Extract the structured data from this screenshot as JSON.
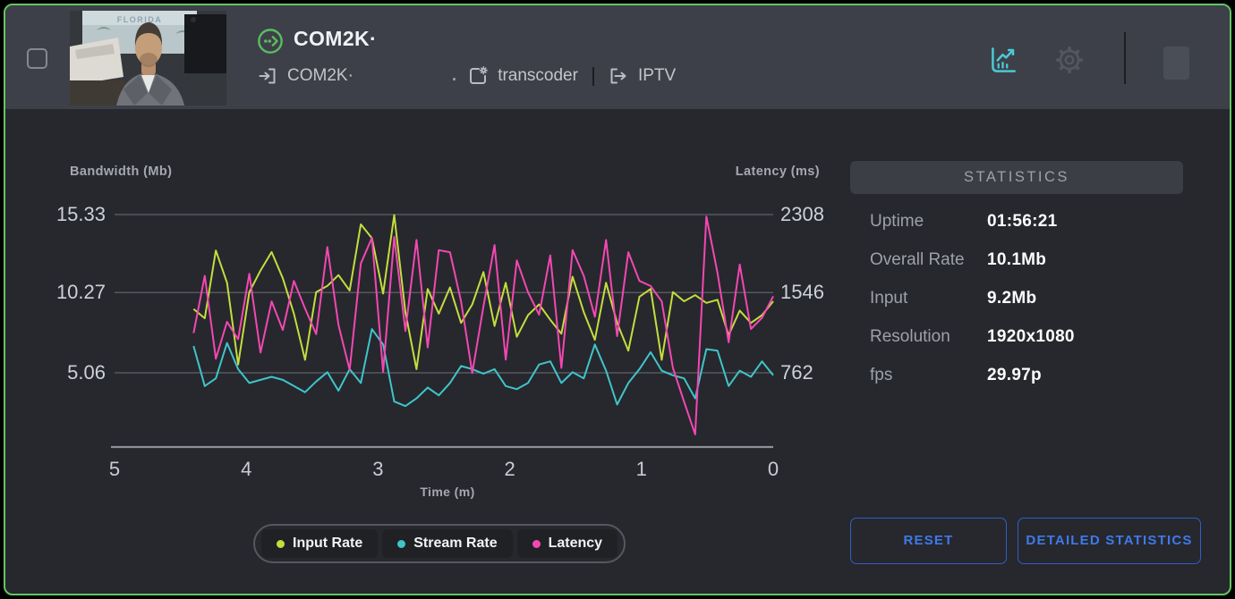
{
  "topbar": {
    "title": "COM2K·",
    "input_label": "COM2K·",
    "separator_dot": ".",
    "transcoder_label": "transcoder",
    "pipe": "|",
    "output_label": "IPTV",
    "thumbnail_poster_text": "FLORIDA"
  },
  "colors": {
    "frame_green": "#65c565",
    "stream_icon_green": "#5cbb60",
    "chart_icon_teal": "#4cc9d4",
    "button_blue": "#4079ea",
    "input_rate": "#c6dc3e",
    "stream_rate": "#40c4cb",
    "latency": "#f447b3"
  },
  "chart": {
    "left_axis_title": "Bandwidth (Mb)",
    "right_axis_title": "Latency (ms)",
    "x_axis_title": "Time (m)"
  },
  "chart_data": {
    "type": "line",
    "x_axis": {
      "label": "Time (m)",
      "ticks": [
        5,
        4,
        3,
        2,
        1,
        0
      ],
      "unit": "minutes",
      "direction": "5 (oldest) to 0 (now)"
    },
    "left_axis": {
      "label": "Bandwidth (Mb)",
      "ticks": [
        15.33,
        10.27,
        5.06
      ]
    },
    "right_axis": {
      "label": "Latency (ms)",
      "ticks": [
        2308,
        1546,
        762
      ]
    },
    "grid": "horizontal-only",
    "legend_position": "bottom-center",
    "series_t_start": 4.4,
    "series": [
      {
        "name": "Input Rate",
        "axis": "left",
        "color": "#c6dc3e",
        "values": [
          9.2,
          8.6,
          13.0,
          10.9,
          5.6,
          10.3,
          11.7,
          12.9,
          11.2,
          8.9,
          5.9,
          10.3,
          10.7,
          11.4,
          10.4,
          14.7,
          13.8,
          10.2,
          15.3,
          9.0,
          5.3,
          10.5,
          8.9,
          10.6,
          8.3,
          9.5,
          11.6,
          8.1,
          10.9,
          7.4,
          8.8,
          9.5,
          8.5,
          7.6,
          11.3,
          9.0,
          7.2,
          10.9,
          8.3,
          6.5,
          10.0,
          10.5,
          5.9,
          10.3,
          9.7,
          10.1,
          9.6,
          9.8,
          7.5,
          9.1,
          8.3,
          8.8,
          9.7
        ]
      },
      {
        "name": "Stream Rate",
        "axis": "left",
        "color": "#40c4cb",
        "values": [
          6.8,
          4.2,
          4.7,
          7.0,
          5.3,
          4.4,
          4.6,
          4.8,
          4.6,
          4.2,
          3.8,
          4.5,
          5.1,
          3.9,
          5.3,
          4.4,
          7.9,
          6.9,
          3.2,
          2.9,
          3.4,
          4.1,
          3.6,
          4.4,
          5.5,
          5.3,
          5.0,
          5.3,
          4.2,
          4.0,
          4.4,
          5.6,
          5.8,
          4.4,
          5.1,
          4.7,
          6.9,
          5.2,
          3.0,
          4.4,
          5.3,
          6.4,
          5.2,
          4.9,
          4.7,
          3.4,
          6.6,
          6.5,
          4.2,
          5.2,
          4.8,
          5.8,
          4.9
        ]
      },
      {
        "name": "Latency",
        "axis": "right",
        "color": "#f447b3",
        "values": [
          1150,
          1710,
          900,
          1260,
          1090,
          1730,
          960,
          1460,
          1180,
          1660,
          1390,
          1140,
          1990,
          1230,
          790,
          1830,
          2080,
          770,
          2090,
          1170,
          2060,
          1010,
          1960,
          1940,
          1460,
          760,
          1410,
          2010,
          890,
          1860,
          1550,
          1330,
          1910,
          810,
          1960,
          1710,
          1310,
          2060,
          1120,
          1940,
          1660,
          1610,
          1460,
          810,
          480,
          160,
          2290,
          1740,
          1060,
          1820,
          1190,
          1300,
          1510
        ]
      }
    ]
  },
  "legend": [
    "Input Rate",
    "Stream Rate",
    "Latency"
  ],
  "stats": {
    "header": "STATISTICS",
    "rows": [
      {
        "label": "Uptime",
        "value": "01:56:21"
      },
      {
        "label": "Overall Rate",
        "value": "10.1Mb"
      },
      {
        "label": "Input",
        "value": "9.2Mb"
      },
      {
        "label": "Resolution",
        "value": "1920x1080"
      },
      {
        "label": "fps",
        "value": "29.97p"
      }
    ]
  },
  "buttons": {
    "reset": "RESET",
    "detailed": "DETAILED STATISTICS"
  }
}
